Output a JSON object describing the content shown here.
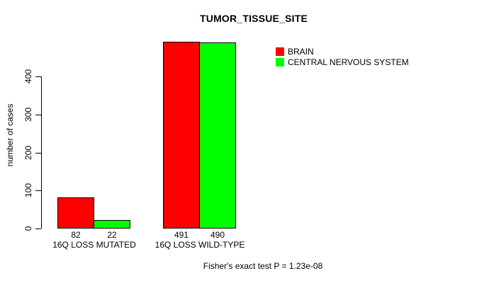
{
  "chart_data": {
    "type": "bar",
    "title": "TUMOR_TISSUE_SITE",
    "xlabel": "",
    "ylabel": "number of cases",
    "categories": [
      "16Q LOSS MUTATED",
      "16Q LOSS WILD-TYPE"
    ],
    "series": [
      {
        "name": "BRAIN",
        "color": "#ff0000",
        "values": [
          82,
          491
        ]
      },
      {
        "name": "CENTRAL NERVOUS SYSTEM",
        "color": "#00ff00",
        "values": [
          22,
          490
        ]
      }
    ],
    "yticks": [
      0,
      100,
      200,
      300,
      400
    ],
    "ylim": [
      0,
      491
    ],
    "grid": false,
    "legend_position": "top-right",
    "bar_value_labels": true,
    "annotation": "Fisher's exact test P = 1.23e-08"
  }
}
